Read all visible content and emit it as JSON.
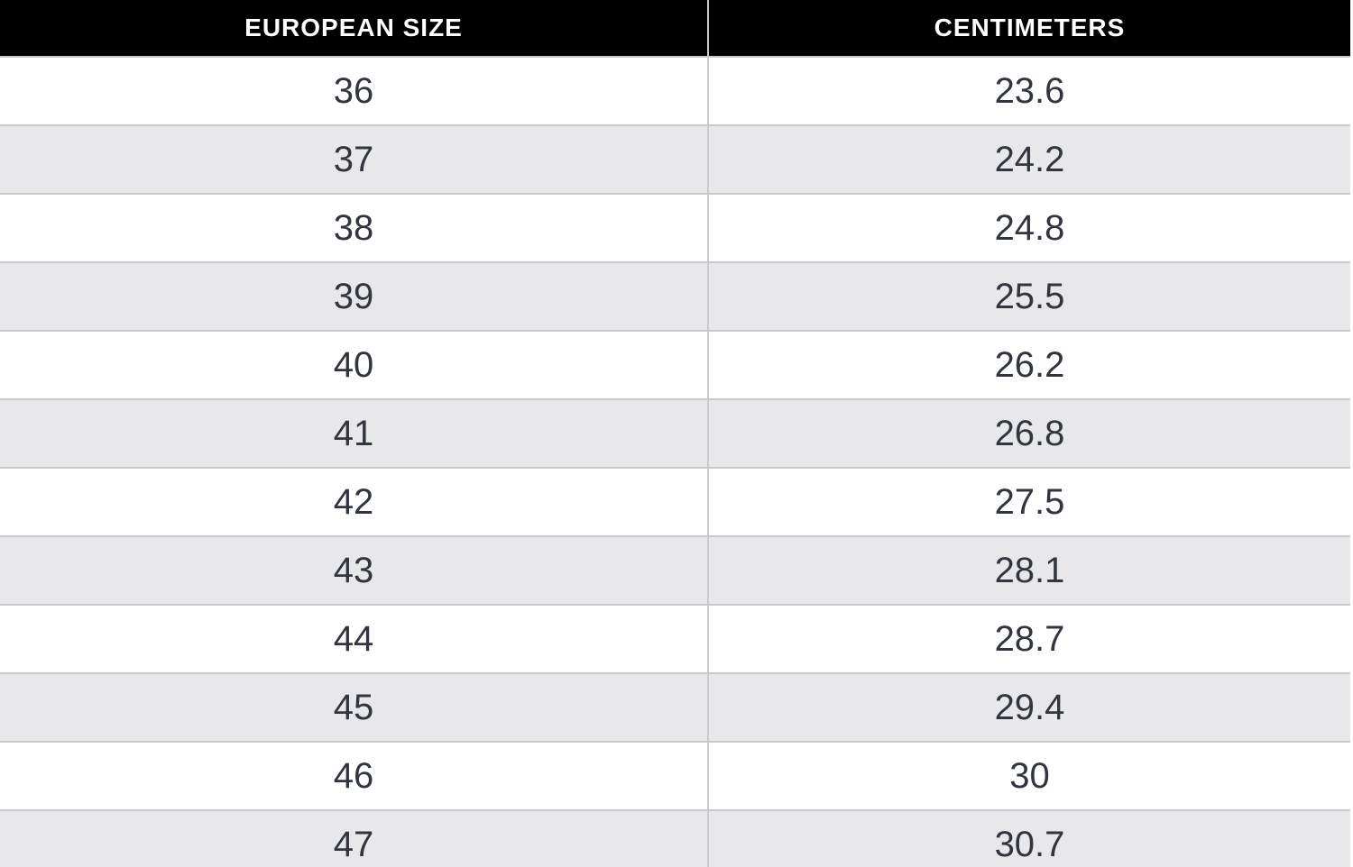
{
  "chart_data": {
    "type": "table",
    "columns": [
      "EUROPEAN SIZE",
      "CENTIMETERS"
    ],
    "rows": [
      [
        "36",
        "23.6"
      ],
      [
        "37",
        "24.2"
      ],
      [
        "38",
        "24.8"
      ],
      [
        "39",
        "25.5"
      ],
      [
        "40",
        "26.2"
      ],
      [
        "41",
        "26.8"
      ],
      [
        "42",
        "27.5"
      ],
      [
        "43",
        "28.1"
      ],
      [
        "44",
        "28.7"
      ],
      [
        "45",
        "29.4"
      ],
      [
        "46",
        "30"
      ],
      [
        "47",
        "30.7"
      ]
    ],
    "layout": {
      "header_bg": "#000000",
      "header_text_color": "#ffffff",
      "row_bg": "#ffffff",
      "row_alt_bg": "#e8e8ea",
      "border_color": "#c9c9cb",
      "cell_text_color": "#31353e"
    }
  }
}
